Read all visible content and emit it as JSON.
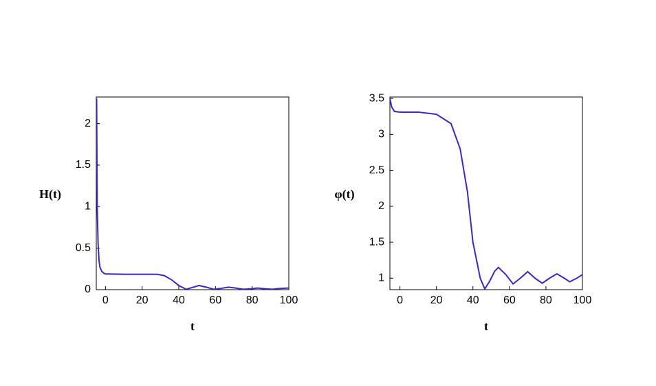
{
  "chart_data": [
    {
      "type": "line",
      "x_label": "t",
      "y_label": "H(t)",
      "x": [
        -4.8,
        -4.5,
        -4,
        -3.5,
        -3,
        -2,
        -1,
        0,
        10,
        20,
        28,
        32,
        36,
        40,
        44,
        48,
        51,
        55,
        59,
        63,
        67,
        71,
        75,
        79,
        83,
        87,
        91,
        95,
        100
      ],
      "series": [
        {
          "color": "#4022d4",
          "values": [
            2.3,
            1.0,
            0.55,
            0.35,
            0.27,
            0.22,
            0.2,
            0.19,
            0.185,
            0.185,
            0.185,
            0.17,
            0.12,
            0.05,
            0.005,
            0.03,
            0.05,
            0.03,
            0.005,
            0.015,
            0.03,
            0.02,
            0.005,
            0.01,
            0.02,
            0.01,
            0.005,
            0.015,
            0.02
          ]
        }
      ],
      "xlim": [
        -5,
        100
      ],
      "xticks": [
        0,
        20,
        40,
        60,
        80,
        100
      ],
      "ylim": [
        0,
        2.32
      ],
      "yticks": [
        0,
        0.5,
        1,
        1.5,
        2
      ]
    },
    {
      "type": "line",
      "x_label": "t",
      "y_label": "φ(t)",
      "x": [
        -5.5,
        -4.5,
        -3,
        0,
        10,
        20,
        28,
        33,
        37,
        40,
        44,
        46.5,
        49,
        52,
        54,
        58,
        62,
        66,
        70,
        74,
        78,
        82,
        86,
        90,
        93,
        97,
        100
      ],
      "series": [
        {
          "color": "#4022d4",
          "values": [
            3.5,
            3.38,
            3.32,
            3.31,
            3.31,
            3.28,
            3.15,
            2.8,
            2.2,
            1.5,
            1.0,
            0.85,
            0.95,
            1.1,
            1.15,
            1.05,
            0.92,
            1.0,
            1.09,
            1.0,
            0.93,
            1.0,
            1.06,
            1.0,
            0.95,
            1.0,
            1.05
          ]
        }
      ],
      "xlim": [
        -5.5,
        100
      ],
      "xticks": [
        0,
        20,
        40,
        60,
        80,
        100
      ],
      "ylim": [
        0.84,
        3.52
      ],
      "yticks": [
        1,
        1.5,
        2,
        2.5,
        3,
        3.5
      ]
    }
  ]
}
